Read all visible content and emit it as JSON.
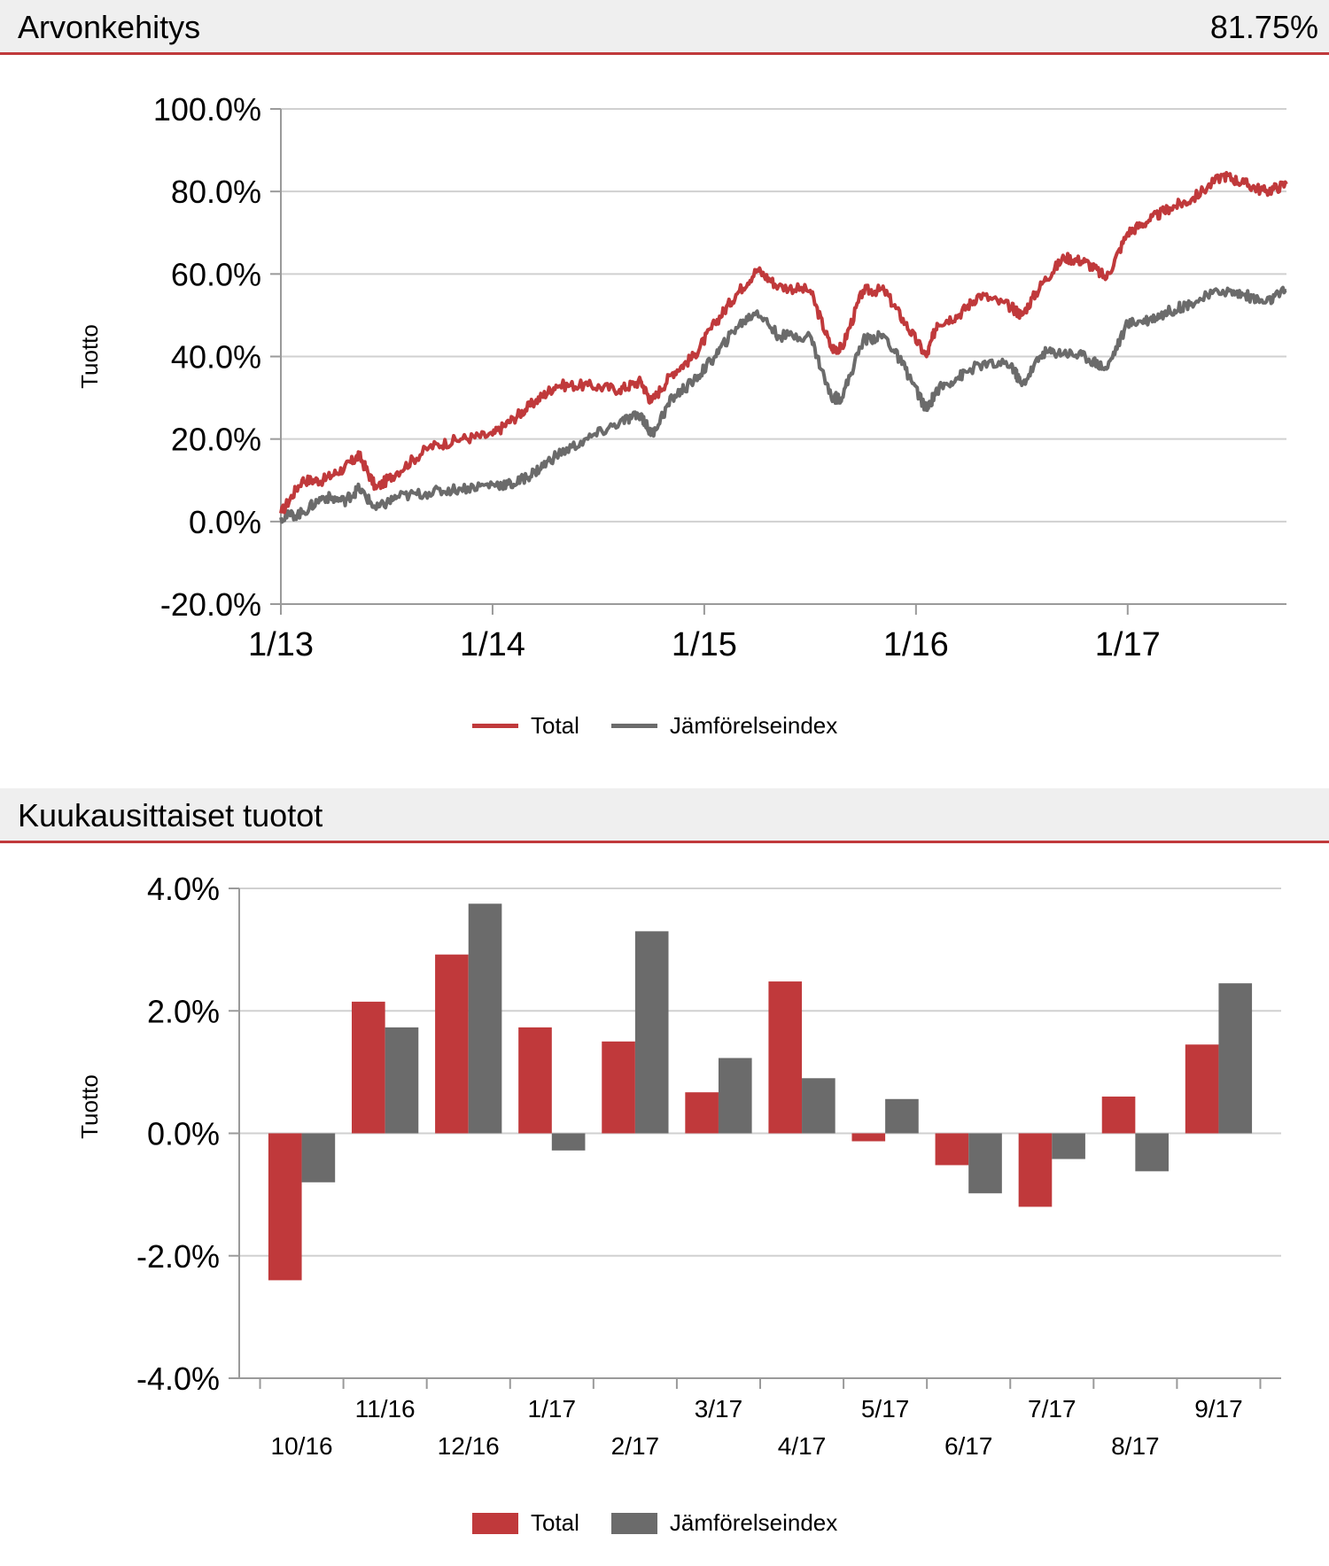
{
  "section1": {
    "title": "Arvonkehitys",
    "value": "81.75%"
  },
  "section2": {
    "title": "Kuukausittaiset tuotot"
  },
  "colors": {
    "total": "#c0393b",
    "index": "#6b6b6b",
    "accent": "#c0393b",
    "header_bg": "#efefef"
  },
  "chart_data": [
    {
      "type": "line",
      "title": "Arvonkehitys",
      "ylabel": "Tuotto",
      "xlabel": "",
      "ylim": [
        -20,
        100
      ],
      "yticks": [
        -20,
        0,
        20,
        40,
        60,
        80,
        100
      ],
      "ytick_labels": [
        "-20.0%",
        "0.0%",
        "20.0%",
        "40.0%",
        "60.0%",
        "80.0%",
        "100.0%"
      ],
      "x_range": [
        2013.0,
        2017.75
      ],
      "xticks": [
        2013,
        2014,
        2015,
        2016,
        2017
      ],
      "xtick_labels": [
        "1/13",
        "1/14",
        "1/15",
        "1/16",
        "1/17"
      ],
      "legend": "bottom-center",
      "series": [
        {
          "name": "Total",
          "x": [
            2013.0,
            2013.1,
            2013.2,
            2013.3,
            2013.37,
            2013.45,
            2013.55,
            2013.7,
            2013.85,
            2014.0,
            2014.1,
            2014.2,
            2014.3,
            2014.45,
            2014.6,
            2014.7,
            2014.75,
            2014.85,
            2014.95,
            2015.05,
            2015.15,
            2015.25,
            2015.35,
            2015.5,
            2015.6,
            2015.65,
            2015.75,
            2015.85,
            2015.95,
            2016.05,
            2016.1,
            2016.2,
            2016.3,
            2016.45,
            2016.5,
            2016.6,
            2016.7,
            2016.8,
            2016.9,
            2017.0,
            2017.1,
            2017.2,
            2017.3,
            2017.45,
            2017.55,
            2017.65,
            2017.75
          ],
          "values": [
            2,
            10,
            10,
            13,
            16,
            8,
            12,
            18,
            20,
            21,
            25,
            29,
            33,
            33,
            32,
            34,
            29,
            36,
            40,
            48,
            55,
            61,
            57,
            56,
            42,
            42,
            56,
            56,
            48,
            40,
            48,
            50,
            55,
            52,
            50,
            58,
            64,
            63,
            59,
            70,
            73,
            76,
            78,
            84,
            82,
            80,
            81.75
          ]
        },
        {
          "name": "Jämförelseindex",
          "x": [
            2013.0,
            2013.1,
            2013.2,
            2013.3,
            2013.37,
            2013.45,
            2013.55,
            2013.7,
            2013.85,
            2014.0,
            2014.1,
            2014.2,
            2014.3,
            2014.45,
            2014.6,
            2014.7,
            2014.75,
            2014.85,
            2014.95,
            2015.05,
            2015.15,
            2015.25,
            2015.35,
            2015.5,
            2015.6,
            2015.65,
            2015.75,
            2015.85,
            2015.95,
            2016.05,
            2016.1,
            2016.2,
            2016.3,
            2016.45,
            2016.5,
            2016.6,
            2016.7,
            2016.8,
            2016.9,
            2017.0,
            2017.1,
            2017.2,
            2017.3,
            2017.45,
            2017.55,
            2017.65,
            2017.75
          ],
          "values": [
            1,
            2,
            6,
            5,
            8,
            3,
            6,
            7,
            8,
            9,
            9,
            12,
            16,
            20,
            24,
            26,
            21,
            30,
            34,
            40,
            47,
            51,
            45,
            45,
            30,
            30,
            44,
            45,
            37,
            27,
            32,
            35,
            38,
            38,
            33,
            41,
            41,
            40,
            37,
            48,
            49,
            51,
            53,
            56,
            55,
            53,
            56
          ]
        }
      ]
    },
    {
      "type": "bar",
      "title": "Kuukausittaiset tuotot",
      "ylabel": "Tuotto",
      "xlabel": "",
      "ylim": [
        -4,
        4
      ],
      "yticks": [
        -4,
        -2,
        0,
        2,
        4
      ],
      "ytick_labels": [
        "-4.0%",
        "-2.0%",
        "0.0%",
        "2.0%",
        "4.0%"
      ],
      "categories": [
        "10/16",
        "11/16",
        "12/16",
        "1/17",
        "2/17",
        "3/17",
        "4/17",
        "5/17",
        "6/17",
        "7/17",
        "8/17",
        "9/17"
      ],
      "legend": "bottom-center",
      "series": [
        {
          "name": "Total",
          "values": [
            -2.4,
            2.15,
            2.92,
            1.73,
            1.5,
            0.67,
            2.48,
            -0.13,
            -0.52,
            -1.2,
            0.6,
            1.45
          ]
        },
        {
          "name": "Jämförelseindex",
          "values": [
            -0.8,
            1.73,
            3.75,
            -0.28,
            3.3,
            1.23,
            0.9,
            0.56,
            -0.98,
            -0.42,
            -0.62,
            2.45
          ]
        }
      ]
    }
  ]
}
